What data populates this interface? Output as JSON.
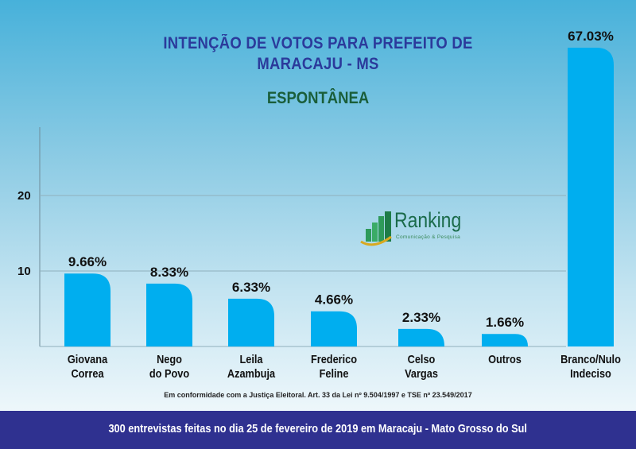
{
  "chart_data": {
    "type": "bar",
    "title": "INTENÇÃO DE VOTOS PARA PREFEITO DE MARACAJU - MS",
    "subtitle": "ESPONTÂNEA",
    "categories": [
      "Giovana Correa",
      "Nego do Povo",
      "Leila Azambuja",
      "Frederico Feline",
      "Celso Vargas",
      "Outros",
      "Branco/Nulo Indeciso"
    ],
    "category_lines": [
      [
        "Giovana",
        "Correa"
      ],
      [
        "Nego",
        "do Povo"
      ],
      [
        "Leila",
        "Azambuja"
      ],
      [
        "Frederico",
        "Feline"
      ],
      [
        "Celso",
        "Vargas"
      ],
      [
        "Outros",
        ""
      ],
      [
        "Branco/Nulo",
        "Indeciso"
      ]
    ],
    "values": [
      9.66,
      8.33,
      6.33,
      4.66,
      2.33,
      1.66,
      67.03
    ],
    "data_labels": [
      "9.66%",
      "8.33%",
      "6.33%",
      "4.66%",
      "2.33%",
      "1.66%",
      "67.03%"
    ],
    "yticks": [
      10,
      20
    ],
    "ylim": [
      0,
      27
    ],
    "grid": true,
    "bar_color": "#00aeef",
    "xlabel": "",
    "ylabel": ""
  },
  "logo": {
    "name": "Ranking",
    "tagline": "Comunicação & Pesquisa"
  },
  "note": "Em conformidade com a Justiça Eleitoral. Art. 33 da Lei nº 9.504/1997 e TSE nº 23.549/2017",
  "footer": "300 entrevistas feitas no dia 25 de fevereiro de 2019 em Maracaju - Mato Grosso do Sul",
  "colors": {
    "title": "#2b3a9b",
    "subtitle": "#1a5e3a",
    "footer_bg": "#2f3190"
  }
}
